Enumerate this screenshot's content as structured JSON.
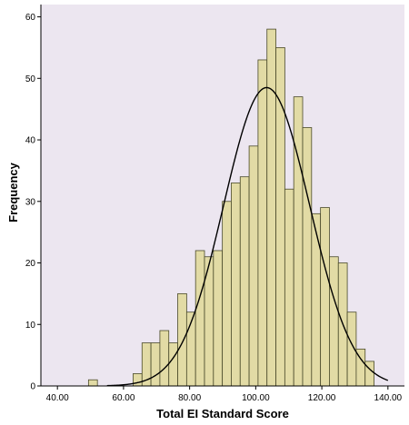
{
  "chart_data": {
    "type": "histogram",
    "xlabel": "Total EI Standard Score",
    "ylabel": "Frequency",
    "xlim": [
      35,
      145
    ],
    "ylim": [
      0,
      62
    ],
    "x_ticks": [
      40,
      60,
      80,
      100,
      120,
      140
    ],
    "x_tick_labels": [
      "40.00",
      "60.00",
      "80.00",
      "100.00",
      "120.00",
      "140.00"
    ],
    "y_ticks": [
      0,
      10,
      20,
      30,
      40,
      50,
      60
    ],
    "y_tick_labels": [
      "0",
      "10",
      "20",
      "30",
      "40",
      "50",
      "60"
    ],
    "bin_width": 2.7,
    "bins": [
      {
        "x0": 49.4,
        "count": 1
      },
      {
        "x0": 62.9,
        "count": 2
      },
      {
        "x0": 65.6,
        "count": 7
      },
      {
        "x0": 68.3,
        "count": 7
      },
      {
        "x0": 71.0,
        "count": 9
      },
      {
        "x0": 73.7,
        "count": 7
      },
      {
        "x0": 76.4,
        "count": 15
      },
      {
        "x0": 79.1,
        "count": 12
      },
      {
        "x0": 81.8,
        "count": 22
      },
      {
        "x0": 84.5,
        "count": 21
      },
      {
        "x0": 87.2,
        "count": 22
      },
      {
        "x0": 89.9,
        "count": 30
      },
      {
        "x0": 92.6,
        "count": 33
      },
      {
        "x0": 95.3,
        "count": 34
      },
      {
        "x0": 98.0,
        "count": 39
      },
      {
        "x0": 100.7,
        "count": 53
      },
      {
        "x0": 103.4,
        "count": 58
      },
      {
        "x0": 106.1,
        "count": 55
      },
      {
        "x0": 108.8,
        "count": 32
      },
      {
        "x0": 111.5,
        "count": 47
      },
      {
        "x0": 114.2,
        "count": 42
      },
      {
        "x0": 116.9,
        "count": 28
      },
      {
        "x0": 119.6,
        "count": 29
      },
      {
        "x0": 122.3,
        "count": 21
      },
      {
        "x0": 125.0,
        "count": 20
      },
      {
        "x0": 127.7,
        "count": 12
      },
      {
        "x0": 130.4,
        "count": 6
      },
      {
        "x0": 133.1,
        "count": 4
      }
    ],
    "normal_curve": {
      "mean": 103.3,
      "sd": 13.0,
      "peak": 48.5
    },
    "plot_background": "#ece6f0",
    "bar_color": "#e2dba5",
    "grid": false,
    "legend": "none"
  }
}
